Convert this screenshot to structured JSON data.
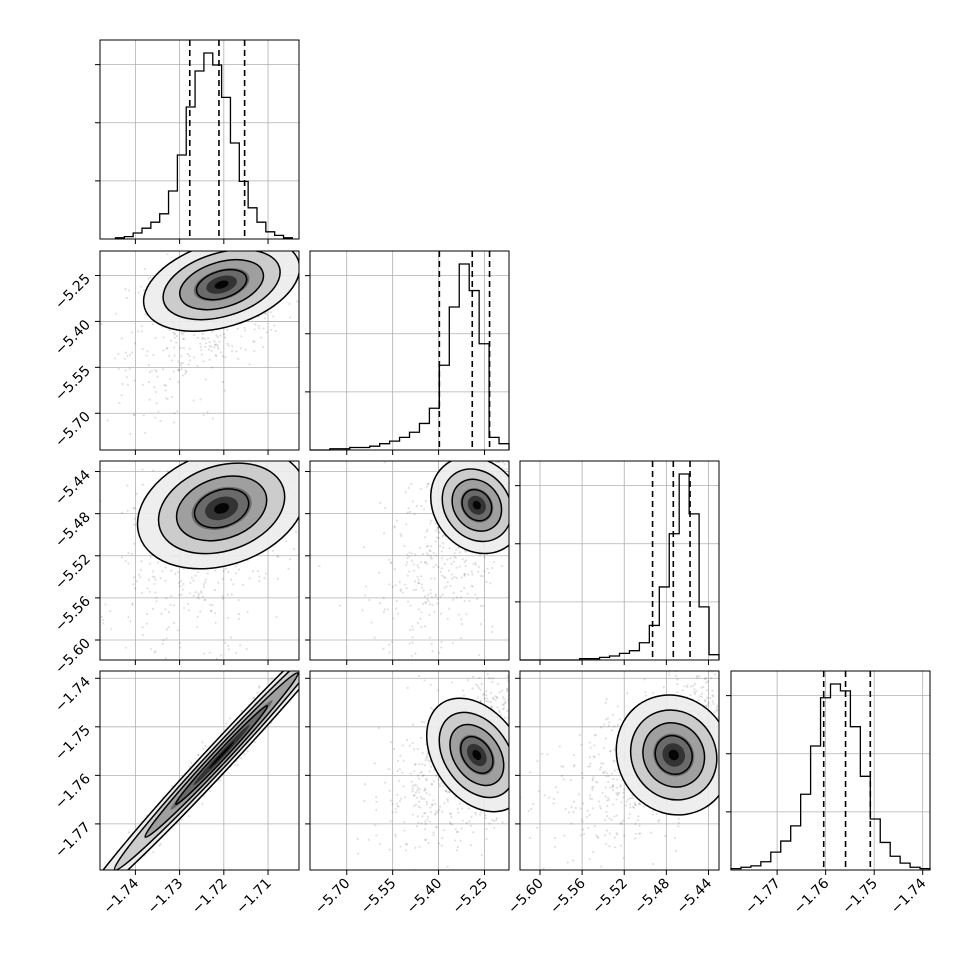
{
  "chart_data": {
    "type": "corner",
    "grid": true,
    "parameters": [
      {
        "id": "p0",
        "range": [
          -1.748,
          -1.703
        ],
        "ticks": [
          -1.74,
          -1.73,
          -1.72,
          -1.71
        ],
        "tick_labels": [
          "−1.74",
          "−1.73",
          "−1.72",
          "−1.71"
        ],
        "quantiles": [
          -1.7277,
          -1.7211,
          -1.7153
        ],
        "hist_edges_range": [
          -1.7445,
          -1.7045
        ],
        "hist_counts": [
          1,
          2,
          5,
          9,
          14,
          21,
          40,
          70,
          110,
          140,
          155,
          145,
          118,
          80,
          48,
          26,
          14,
          6,
          3,
          1
        ]
      },
      {
        "id": "p1",
        "range": [
          -5.82,
          -5.17
        ],
        "ticks": [
          -5.7,
          -5.55,
          -5.4,
          -5.25
        ],
        "tick_labels": [
          "−5.70",
          "−5.55",
          "−5.40",
          "−5.25"
        ],
        "quantiles": [
          -5.3975,
          -5.29,
          -5.2335
        ],
        "hist_edges_range": [
          -5.82,
          -5.17
        ],
        "hist_counts": [
          0,
          0,
          1,
          1,
          2,
          2,
          3,
          5,
          7,
          10,
          14,
          21,
          33,
          67,
          113,
          147,
          126,
          84,
          10,
          5
        ]
      },
      {
        "id": "p2",
        "range": [
          -5.619,
          -5.43
        ],
        "ticks": [
          -5.6,
          -5.56,
          -5.52,
          -5.48,
          -5.44
        ],
        "tick_labels": [
          "−5.60",
          "−5.56",
          "−5.52",
          "−5.48",
          "−5.44"
        ],
        "quantiles": [
          -5.4931,
          -5.4734,
          -5.4575
        ],
        "hist_edges_range": [
          -5.619,
          -5.43
        ],
        "hist_counts": [
          0,
          0,
          0,
          0,
          0,
          0,
          1,
          1,
          2,
          3,
          5,
          7,
          13,
          26,
          55,
          95,
          140,
          110,
          40,
          4
        ]
      },
      {
        "id": "p3",
        "range": [
          -1.7795,
          -1.7385
        ],
        "ticks": [
          -1.77,
          -1.76,
          -1.75,
          -1.74
        ],
        "tick_labels": [
          "−1.77",
          "−1.76",
          "−1.75",
          "−1.74"
        ],
        "quantiles": [
          -1.7604,
          -1.7559,
          -1.7508
        ],
        "hist_edges_range": [
          -1.7795,
          -1.7385
        ],
        "hist_counts": [
          1,
          2,
          3,
          6,
          13,
          21,
          32,
          55,
          90,
          125,
          135,
          130,
          104,
          68,
          37,
          20,
          10,
          5,
          2,
          1
        ]
      }
    ],
    "joint": [
      {
        "x": 0,
        "y": 1,
        "center": [
          -1.7205,
          -5.28
        ],
        "sigma": [
          0.0065,
          0.06
        ],
        "rho": 0.6,
        "skew_y": "left"
      },
      {
        "x": 0,
        "y": 2,
        "center": [
          -1.7205,
          -5.475
        ],
        "sigma": [
          0.007,
          0.023
        ],
        "rho": 0.55,
        "skew_y": "left"
      },
      {
        "x": 1,
        "y": 2,
        "center": [
          -5.275,
          -5.472
        ],
        "sigma": [
          0.05,
          0.022
        ],
        "rho": 0.7,
        "skew_x": "left",
        "skew_y": "left"
      },
      {
        "x": 0,
        "y": 3,
        "center": [
          -1.7205,
          -1.7558
        ],
        "sigma": [
          0.0065,
          0.0065
        ],
        "rho": 0.98
      },
      {
        "x": 1,
        "y": 3,
        "center": [
          -5.275,
          -1.7558
        ],
        "sigma": [
          0.05,
          0.0055
        ],
        "rho": 0.55,
        "skew_x": "left"
      },
      {
        "x": 2,
        "y": 3,
        "center": [
          -5.473,
          -1.7558
        ],
        "sigma": [
          0.019,
          0.0055
        ],
        "rho": 0.6,
        "skew_x": "left"
      }
    ]
  }
}
